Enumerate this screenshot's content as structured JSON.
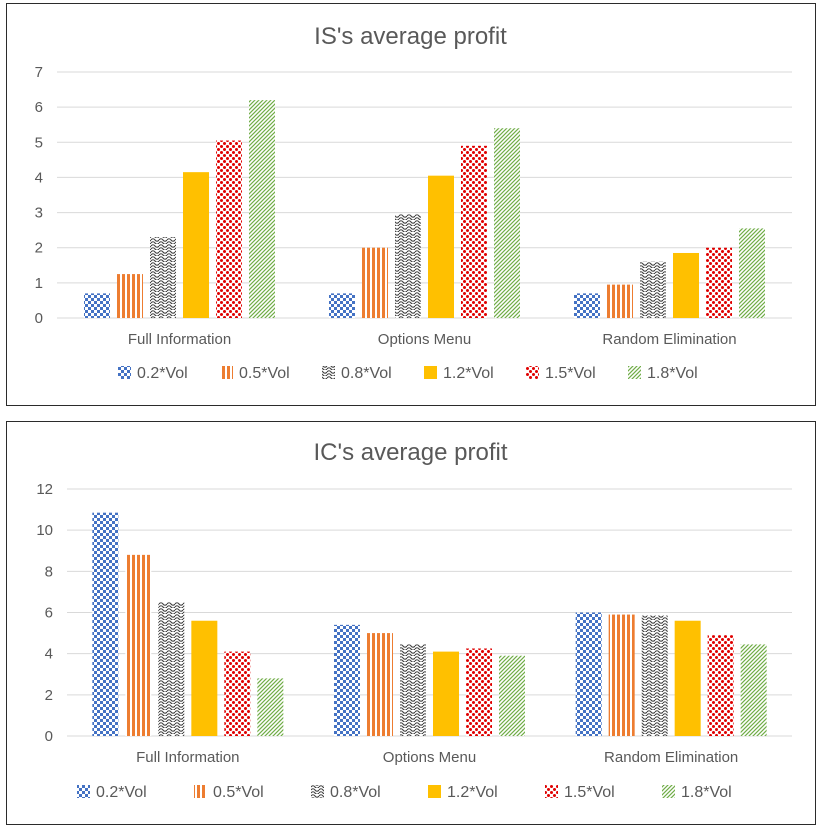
{
  "colors": {
    "s1": "#4472C4",
    "s2": "#ED7D31",
    "s3": "#404040",
    "s4": "#FFC000",
    "s5": "#E00000",
    "s6": "#70AD47",
    "grid": "#D9D9D9",
    "text": "#595959"
  },
  "chart_data": [
    {
      "type": "bar",
      "title": "IS's average profit",
      "categories": [
        "Full Information",
        "Options Menu",
        "Random Elimination"
      ],
      "ylim": [
        0,
        7
      ],
      "yticks": [
        0,
        1,
        2,
        3,
        4,
        5,
        6,
        7
      ],
      "legend_position": "bottom",
      "series": [
        {
          "name": "0.2*Vol",
          "values": [
            0.7,
            0.7,
            0.7
          ]
        },
        {
          "name": "0.5*Vol",
          "values": [
            1.25,
            2.0,
            0.95
          ]
        },
        {
          "name": "0.8*Vol",
          "values": [
            2.3,
            2.95,
            1.6
          ]
        },
        {
          "name": "1.2*Vol",
          "values": [
            4.15,
            4.05,
            1.85
          ]
        },
        {
          "name": "1.5*Vol",
          "values": [
            5.05,
            4.9,
            2.0
          ]
        },
        {
          "name": "1.8*Vol",
          "values": [
            6.2,
            5.4,
            2.55
          ]
        }
      ]
    },
    {
      "type": "bar",
      "title": "IC's average profit",
      "categories": [
        "Full Information",
        "Options Menu",
        "Random Elimination"
      ],
      "ylim": [
        0,
        12
      ],
      "yticks": [
        0,
        2,
        4,
        6,
        8,
        10,
        12
      ],
      "legend_position": "bottom",
      "series": [
        {
          "name": "0.2*Vol",
          "values": [
            10.85,
            5.4,
            6.0
          ]
        },
        {
          "name": "0.5*Vol",
          "values": [
            8.8,
            5.0,
            5.9
          ]
        },
        {
          "name": "0.8*Vol",
          "values": [
            6.5,
            4.45,
            5.85
          ]
        },
        {
          "name": "1.2*Vol",
          "values": [
            5.6,
            4.1,
            5.6
          ]
        },
        {
          "name": "1.5*Vol",
          "values": [
            4.1,
            4.25,
            4.9
          ]
        },
        {
          "name": "1.8*Vol",
          "values": [
            2.8,
            3.9,
            4.45
          ]
        }
      ]
    }
  ]
}
